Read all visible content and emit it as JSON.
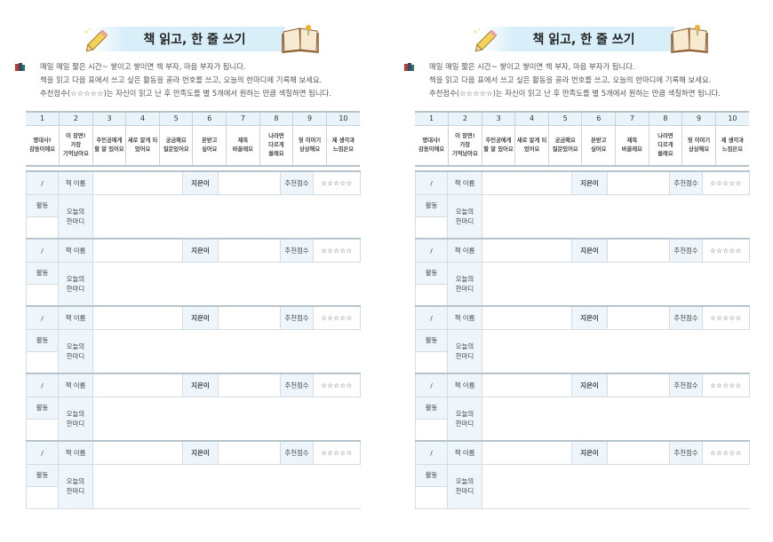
{
  "title": "책 읽고, 한 줄 쓰기",
  "intro": [
    "매일 매일 짧은 시간~ 쌓이고 쌓이면 책 부자, 마음 부자가 됩니다.",
    "책을 읽고 다음 표에서 쓰고 싶은 활동을 골라 번호를 쓰고, 오늘의 한마디에 기록해 보세요.",
    "추천점수(☆☆☆☆☆)는 자신이 읽고 난 후 만족도를 별 5개에서 원하는 만큼 색칠하면 됩니다."
  ],
  "activities": [
    {
      "num": "1",
      "label": "명대사!\n감동이에요"
    },
    {
      "num": "2",
      "label": "이 장면!\n가장\n기억남아요"
    },
    {
      "num": "3",
      "label": "주인공에게\n할 말 있어요"
    },
    {
      "num": "4",
      "label": "새로 알게 되\n었어요"
    },
    {
      "num": "5",
      "label": "궁금해요\n질문있어요"
    },
    {
      "num": "6",
      "label": "본받고\n싶어요"
    },
    {
      "num": "7",
      "label": "제목\n바꿀래요"
    },
    {
      "num": "8",
      "label": "나라면\n다르게\n쓸래요"
    },
    {
      "num": "9",
      "label": "뒷 이야기\n상상해요"
    },
    {
      "num": "10",
      "label": "제 생각과\n느낌은요"
    }
  ],
  "entry": {
    "date": "/",
    "book_title": "책 이름",
    "author": "지은이",
    "rating": "추천점수",
    "stars": "☆☆☆☆☆",
    "activity": "활동",
    "comment": "오늘의\n한마디"
  },
  "pages": 2,
  "entries_per_page": 5,
  "colors": {
    "header_bg": "#e8f3fa",
    "banner": "#d8eef8",
    "rule": "#b7c4cc"
  }
}
